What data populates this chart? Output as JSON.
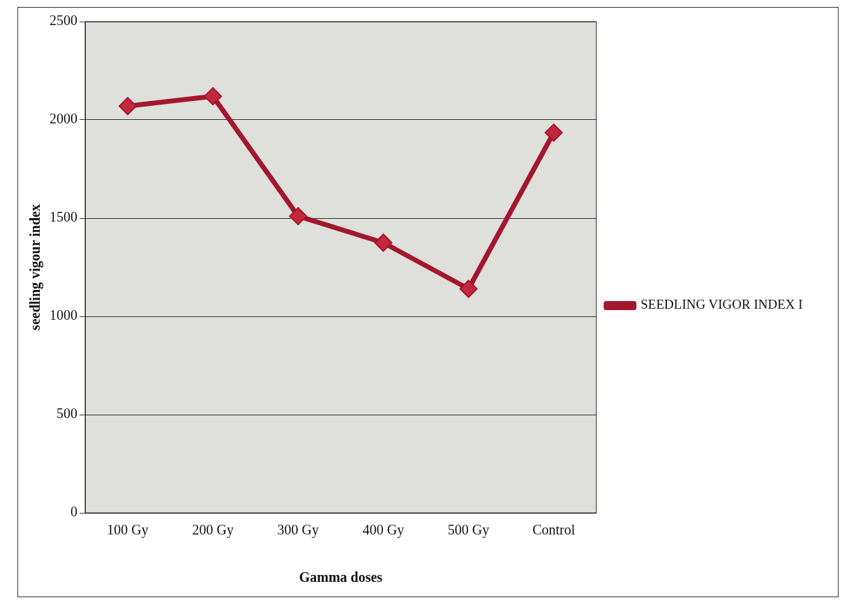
{
  "chart_data": {
    "type": "line",
    "xlabel": "Gamma doses",
    "ylabel": "seedling vigour index",
    "categories": [
      "100 Gy",
      "200 Gy",
      "300 Gy",
      "400 Gy",
      "500 Gy",
      "Control"
    ],
    "series": [
      {
        "name": "SEEDLING VIGOR INDEX I",
        "color": "#a3172e",
        "values": [
          2070,
          2120,
          1510,
          1375,
          1140,
          1935
        ]
      }
    ],
    "ylim": [
      0,
      2500
    ],
    "yticks": [
      0,
      500,
      1000,
      1500,
      2000,
      2500
    ],
    "grid": "y",
    "legend": "right",
    "marker": "diamond",
    "line_style": "solid"
  }
}
